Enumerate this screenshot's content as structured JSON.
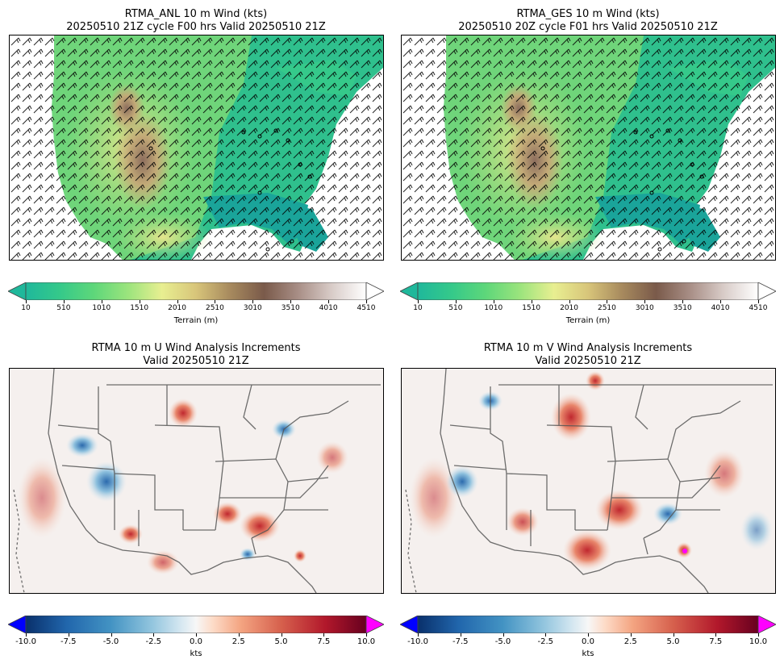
{
  "panels": {
    "anl": {
      "title1": "RTMA_ANL 10 m Wind (kts)",
      "title2": "20250510 21Z cycle F00 hrs Valid 20250510 21Z"
    },
    "ges": {
      "title1": "RTMA_GES 10 m Wind (kts)",
      "title2": "20250510 20Z cycle F01 hrs Valid 20250510 21Z"
    },
    "u": {
      "title1": "RTMA 10 m U Wind Analysis Increments",
      "title2": "Valid 20250510 21Z"
    },
    "v": {
      "title1": "RTMA 10 m V Wind Analysis Increments",
      "title2": "Valid 20250510 21Z"
    }
  },
  "terrain_colorbar": {
    "label": "Terrain (m)",
    "ticks": [
      "10",
      "510",
      "1010",
      "1510",
      "2010",
      "2510",
      "3010",
      "3510",
      "4010",
      "4510"
    ],
    "min": 10,
    "max": 4510,
    "colors": [
      "#1fb89b",
      "#35c98a",
      "#5ed77a",
      "#9be47d",
      "#e8ef91",
      "#d8c57a",
      "#a78a5e",
      "#7a5a4a",
      "#a88e86",
      "#d9cdc9",
      "#ffffff"
    ]
  },
  "increment_colorbar": {
    "label": "kts",
    "ticks": [
      "-10.0",
      "-7.5",
      "-5.0",
      "-2.5",
      "0.0",
      "2.5",
      "5.0",
      "7.5",
      "10.0"
    ],
    "min": -10,
    "max": 10,
    "under_color": "#0000ff",
    "over_color": "#ff00ff",
    "colors": [
      "#09306b",
      "#2166ac",
      "#4393c3",
      "#92c5de",
      "#d1e5f0",
      "#f7f7f7",
      "#fddbc7",
      "#f4a582",
      "#d6604d",
      "#b2182b",
      "#67001f"
    ]
  }
}
